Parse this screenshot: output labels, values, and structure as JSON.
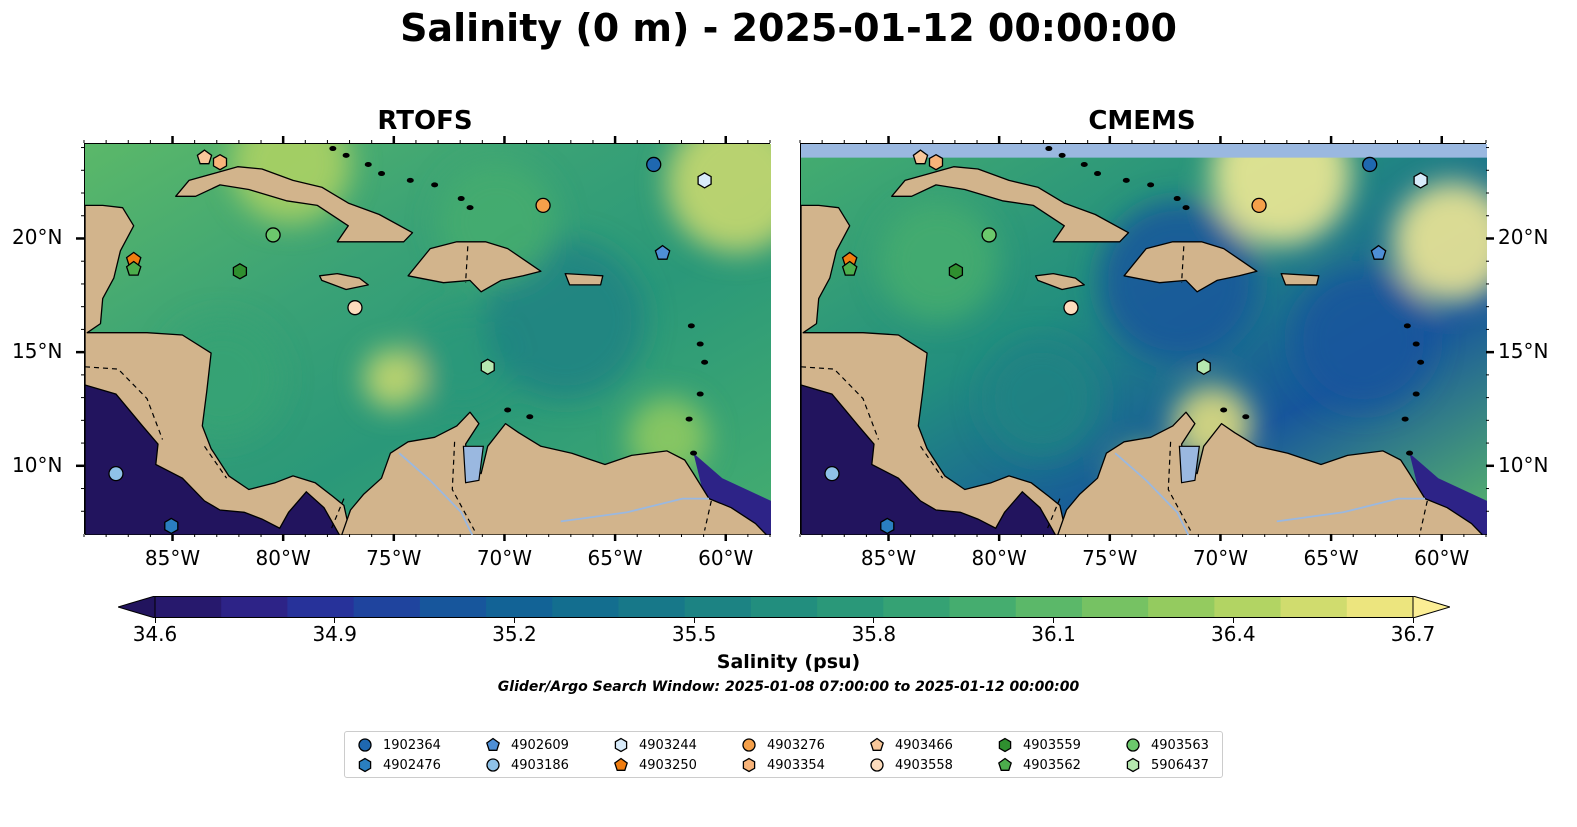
{
  "main_title": "Salinity (0 m) - 2025-01-12 00:00:00",
  "panels": [
    {
      "title": "RTOFS",
      "variant": "rtofs"
    },
    {
      "title": "CMEMS",
      "variant": "cmems"
    }
  ],
  "axes": {
    "lon_ticks": [
      "85°W",
      "80°W",
      "75°W",
      "70°W",
      "65°W",
      "60°W"
    ],
    "lon_values": [
      -85,
      -80,
      -75,
      -70,
      -65,
      -60
    ],
    "lat_ticks": [
      "20°N",
      "15°N",
      "10°N"
    ],
    "lat_values": [
      20,
      15,
      10
    ],
    "extent": {
      "lon_min": -89,
      "lon_max": -58,
      "lat_min": 7,
      "lat_max": 24.2
    }
  },
  "colorbar": {
    "title": "Salinity (psu)",
    "ticks": [
      "34.6",
      "34.9",
      "35.2",
      "35.5",
      "35.8",
      "36.1",
      "36.4",
      "36.7"
    ],
    "min": 34.6,
    "max": 36.7,
    "colors": [
      "#27196d",
      "#2d2387",
      "#27329a",
      "#1f449e",
      "#17569c",
      "#126396",
      "#136e8f",
      "#177889",
      "#1c8383",
      "#228e7e",
      "#2a9879",
      "#35a274",
      "#45ad6f",
      "#5bb869",
      "#76c263",
      "#94cb5f",
      "#b2d463",
      "#d0dc6e",
      "#ece57e"
    ],
    "extend_low": "#22145e",
    "extend_high": "#fbee95"
  },
  "search_window": "Glider/Argo Search Window: 2025-01-08 07:00:00 to 2025-01-12 00:00:00",
  "land_color": "#d2b48c",
  "water_body_color": "#9ab8e0",
  "legend": {
    "items": [
      {
        "id": "1902364",
        "shape": "circle",
        "color": "#1f68b0",
        "lon": -63.3,
        "lat": 23.3
      },
      {
        "id": "4902476",
        "shape": "hexagon",
        "color": "#2a7fc0",
        "lon": -85.1,
        "lat": 7.4
      },
      {
        "id": "4902609",
        "shape": "pentagon",
        "color": "#4e8fd6",
        "lon": -62.9,
        "lat": 19.4
      },
      {
        "id": "4903186",
        "shape": "circle",
        "color": "#8fc2e8",
        "lon": -87.6,
        "lat": 9.7
      },
      {
        "id": "4903244",
        "shape": "hexagon",
        "color": "#d8ebfa",
        "lon": -61.0,
        "lat": 22.6
      },
      {
        "id": "4903250",
        "shape": "pentagon",
        "color": "#f07d10",
        "lon": -86.8,
        "lat": 19.1
      },
      {
        "id": "4903276",
        "shape": "circle",
        "color": "#f5a04a",
        "lon": -68.3,
        "lat": 21.5
      },
      {
        "id": "4903354",
        "shape": "hexagon",
        "color": "#f8b47a",
        "lon": -82.9,
        "lat": 23.4
      },
      {
        "id": "4903466",
        "shape": "pentagon",
        "color": "#f8c79a",
        "lon": -83.6,
        "lat": 23.6
      },
      {
        "id": "4903558",
        "shape": "circle",
        "color": "#fddcbd",
        "lon": -76.8,
        "lat": 17.0
      },
      {
        "id": "4903559",
        "shape": "hexagon",
        "color": "#2f8f2f",
        "lon": -82.0,
        "lat": 18.6
      },
      {
        "id": "4903562",
        "shape": "pentagon",
        "color": "#4cae4c",
        "lon": -86.8,
        "lat": 18.7
      },
      {
        "id": "4903563",
        "shape": "circle",
        "color": "#6cc86c",
        "lon": -80.5,
        "lat": 20.2
      },
      {
        "id": "5906437",
        "shape": "hexagon",
        "color": "#b6e8b0",
        "lon": -70.8,
        "lat": 14.4
      }
    ]
  }
}
